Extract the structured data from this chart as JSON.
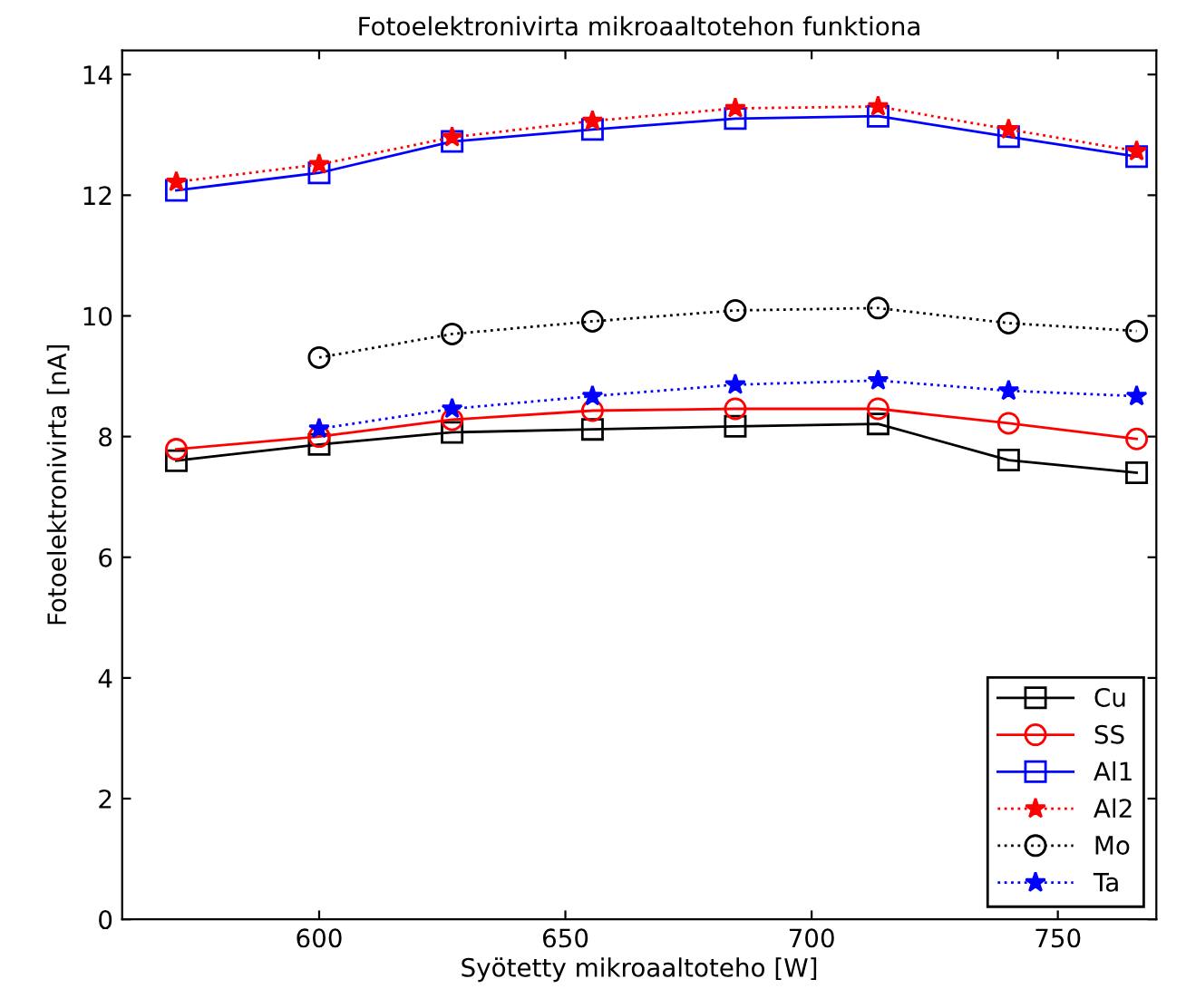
{
  "chart_data": {
    "type": "line",
    "title": "Fotoelektronivirta mikroaaltotehon funktiona",
    "xlabel": "Syötetty mikroaaltoteho [W]",
    "ylabel": "Fotoelektronivirta [nA]",
    "x": [
      571,
      600,
      627,
      655.5,
      684.5,
      713.5,
      740,
      766
    ],
    "xlim": [
      560,
      770
    ],
    "xticks": [
      600,
      650,
      700,
      750
    ],
    "ylim": [
      0,
      14.4
    ],
    "yticks": [
      0,
      2,
      4,
      6,
      8,
      10,
      12,
      14
    ],
    "grid": false,
    "legend": "bottom right",
    "series": [
      {
        "name": "Cu",
        "color": "#000000",
        "marker": "square",
        "line_style": "solid",
        "values": [
          7.6,
          7.87,
          8.07,
          8.12,
          8.17,
          8.21,
          7.61,
          7.4
        ]
      },
      {
        "name": "SS",
        "color": "#ff0000",
        "marker": "circle",
        "line_style": "solid",
        "values": [
          7.79,
          8.0,
          8.28,
          8.43,
          8.46,
          8.46,
          8.22,
          7.96
        ]
      },
      {
        "name": "Al1",
        "color": "#0000ff",
        "marker": "square",
        "line_style": "solid",
        "values": [
          12.08,
          12.37,
          12.89,
          13.09,
          13.27,
          13.31,
          12.97,
          12.64
        ]
      },
      {
        "name": "Al2",
        "color": "#ff0000",
        "marker": "star",
        "line_style": "dotted",
        "values": [
          12.22,
          12.51,
          12.96,
          13.23,
          13.44,
          13.47,
          13.09,
          12.73
        ]
      },
      {
        "name": "Mo",
        "color": "#000000",
        "marker": "circle",
        "line_style": "dotted",
        "values": [
          null,
          9.31,
          9.7,
          9.91,
          10.09,
          10.13,
          9.88,
          9.75
        ]
      },
      {
        "name": "Ta",
        "color": "#0000ff",
        "marker": "star",
        "line_style": "dotted",
        "values": [
          null,
          8.13,
          8.46,
          8.67,
          8.86,
          8.93,
          8.76,
          8.67
        ]
      }
    ]
  }
}
